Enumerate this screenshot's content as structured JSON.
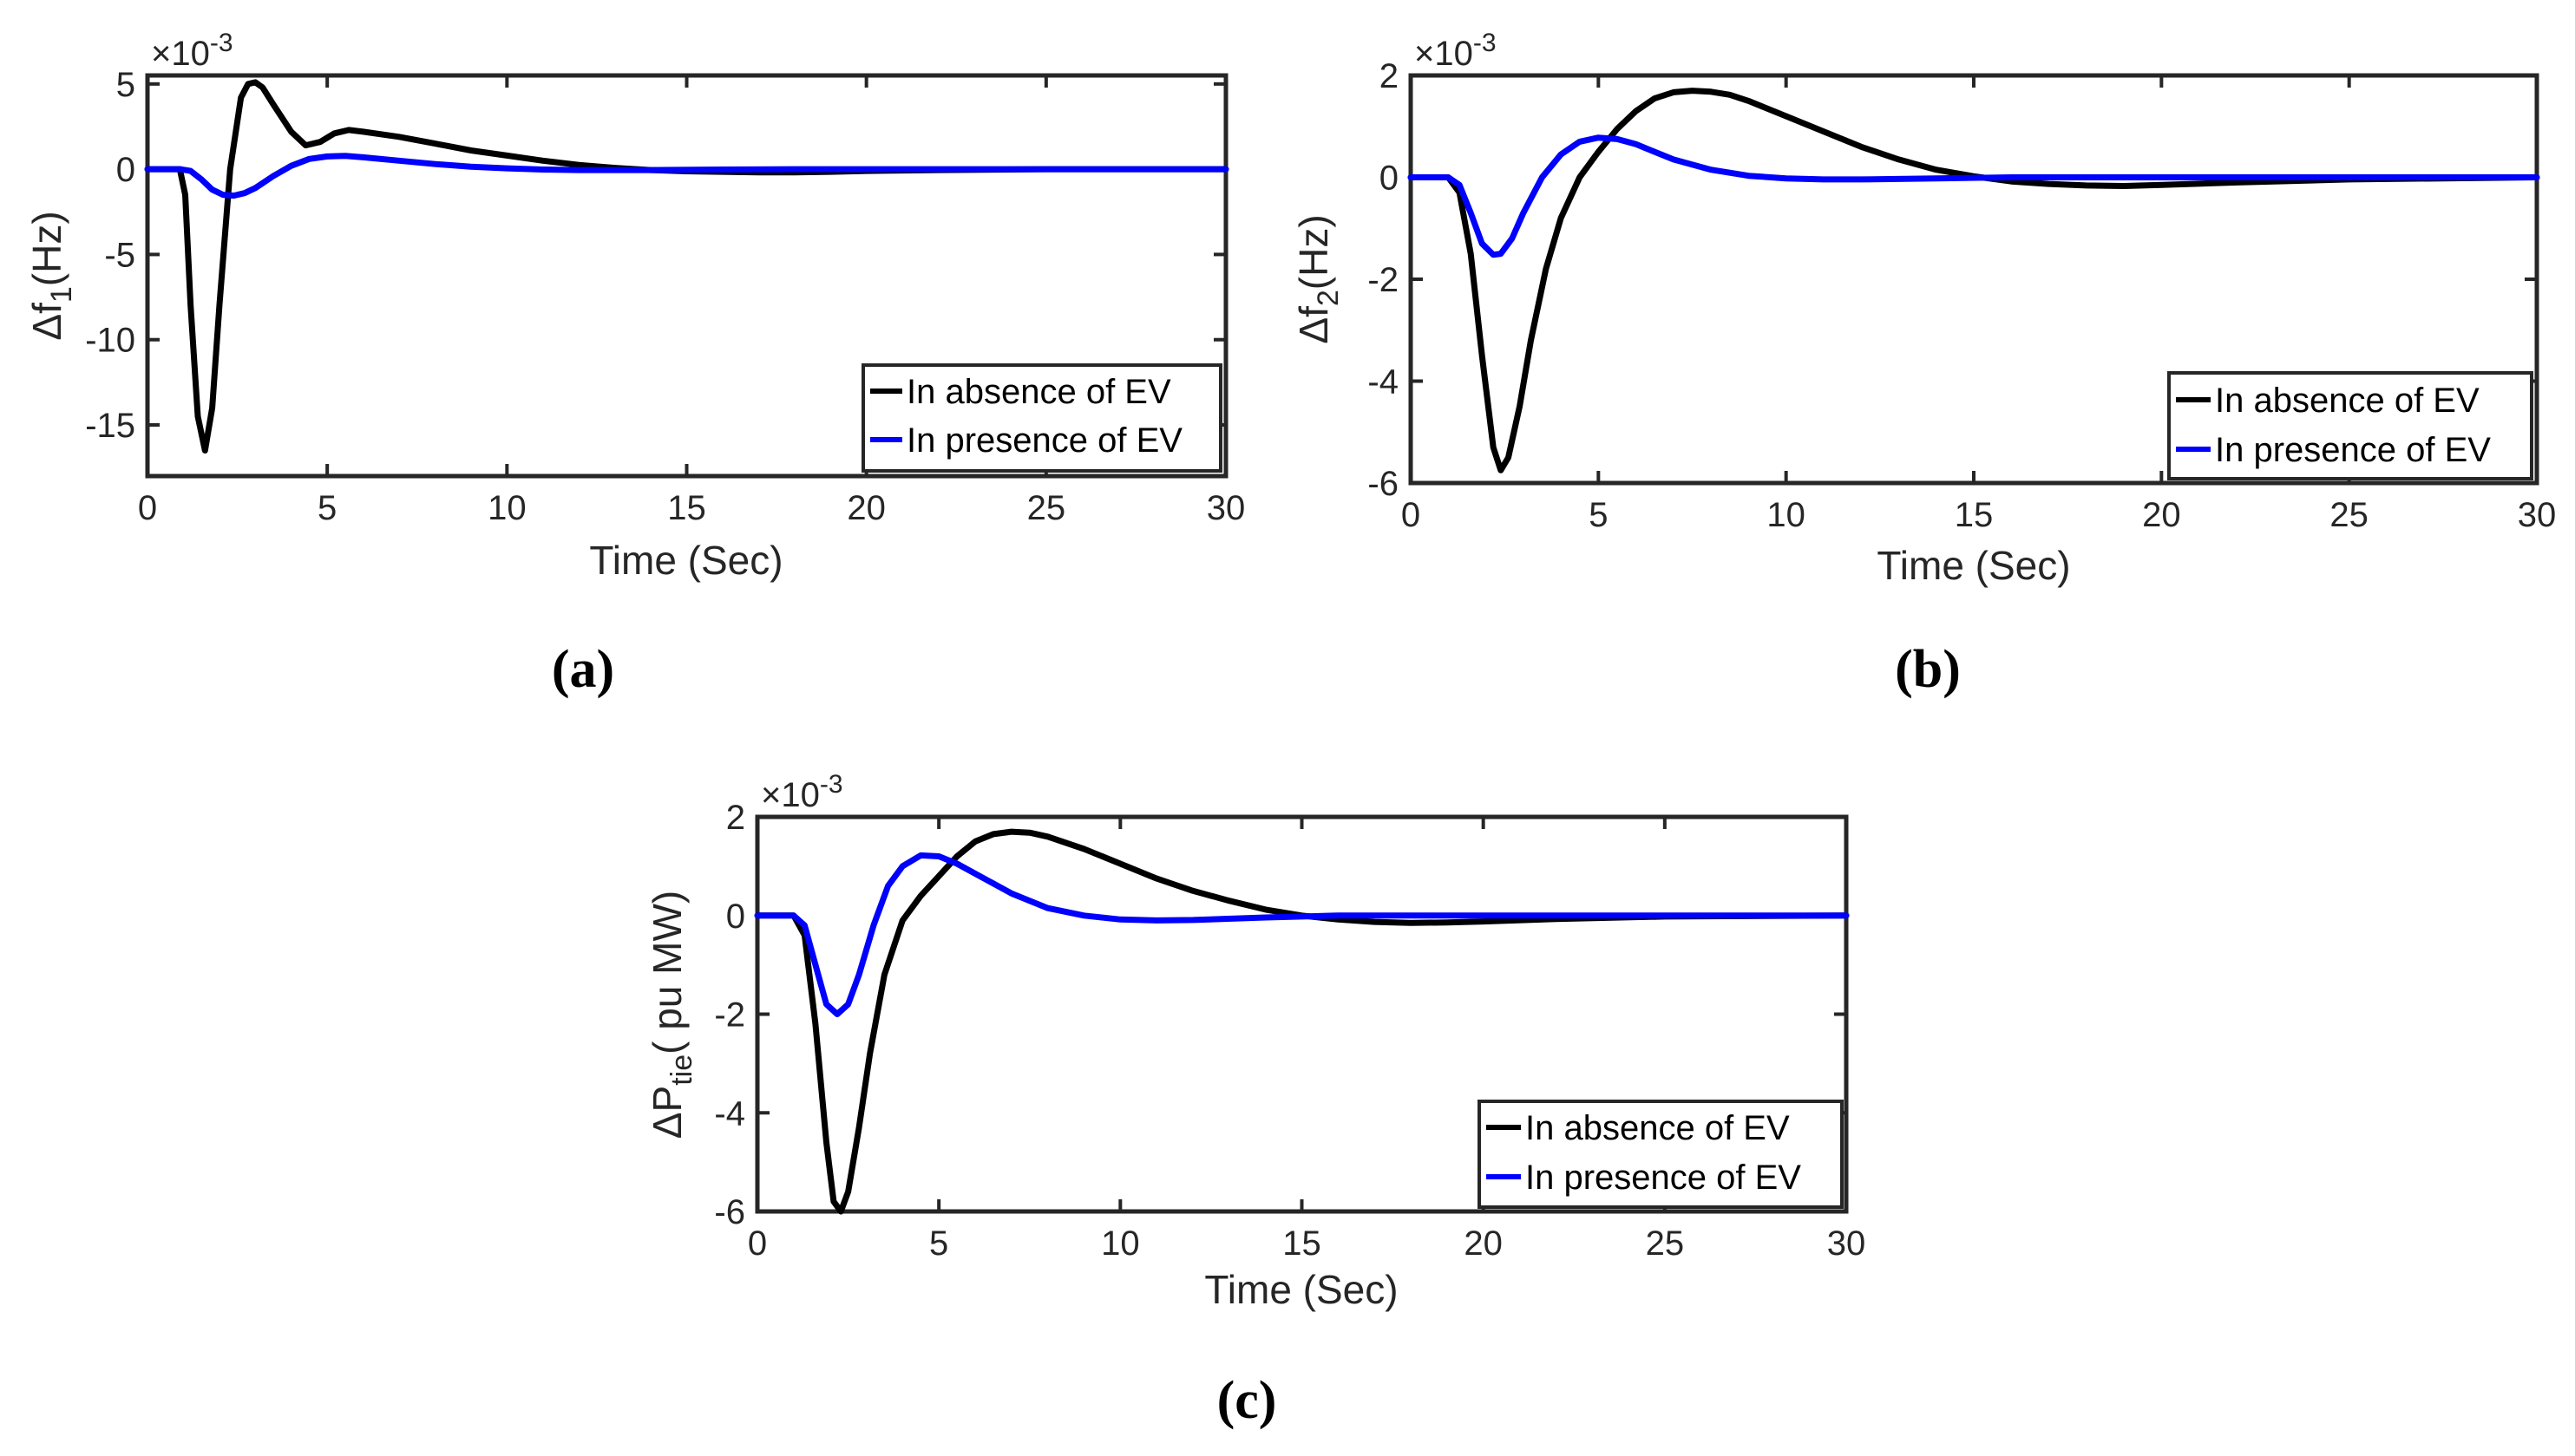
{
  "chart_data": [
    {
      "type": "line",
      "caption": "(a)",
      "ylabel": {
        "main": "Δf",
        "sub": "1",
        "rest": "(Hz)"
      },
      "xlabel": "Time (Sec)",
      "exponent": {
        "base": "×10",
        "power": "-3"
      },
      "xlim": [
        0,
        30
      ],
      "ylim": [
        -18,
        5.5
      ],
      "xticks": [
        0,
        5,
        10,
        15,
        20,
        25,
        30
      ],
      "yticks": [
        -15,
        -10,
        -5,
        0,
        5
      ],
      "legend_position": "bottom-right",
      "series": [
        {
          "name": "In absence of  EV",
          "color": "#000000",
          "x": [
            0,
            0.9,
            1.05,
            1.2,
            1.4,
            1.6,
            1.8,
            2.0,
            2.3,
            2.6,
            2.8,
            3.0,
            3.2,
            3.5,
            4.0,
            4.4,
            4.8,
            5.2,
            5.6,
            6.0,
            7.0,
            8.0,
            9.0,
            10.0,
            11.0,
            12.0,
            13.0,
            14.0,
            15.0,
            17.0,
            18.0,
            19.0,
            20.0,
            22.0,
            25.0,
            30.0
          ],
          "y": [
            0,
            0,
            -1.5,
            -8,
            -14.5,
            -16.5,
            -14,
            -8,
            0,
            4.2,
            5.0,
            5.1,
            4.8,
            3.8,
            2.2,
            1.4,
            1.6,
            2.1,
            2.3,
            2.2,
            1.9,
            1.5,
            1.1,
            0.8,
            0.5,
            0.25,
            0.08,
            -0.05,
            -0.12,
            -0.18,
            -0.18,
            -0.15,
            -0.1,
            -0.05,
            0,
            0
          ]
        },
        {
          "name": "In presence of EV",
          "color": "#0000FF",
          "x": [
            0,
            0.9,
            1.2,
            1.5,
            1.8,
            2.1,
            2.4,
            2.7,
            3.0,
            3.5,
            4.0,
            4.5,
            5.0,
            5.5,
            6.0,
            7.0,
            8.0,
            9.0,
            10.0,
            11.0,
            12.0,
            14.0,
            16.0,
            18.0,
            20.0,
            25.0,
            30.0
          ],
          "y": [
            0,
            0,
            -0.1,
            -0.6,
            -1.2,
            -1.5,
            -1.55,
            -1.4,
            -1.1,
            -0.4,
            0.2,
            0.6,
            0.75,
            0.78,
            0.7,
            0.5,
            0.3,
            0.15,
            0.05,
            -0.02,
            -0.05,
            -0.05,
            -0.02,
            0,
            0,
            0,
            0
          ]
        }
      ]
    },
    {
      "type": "line",
      "caption": "(b)",
      "ylabel": {
        "main": "Δf",
        "sub": "2",
        "rest": "(Hz)"
      },
      "xlabel": "Time (Sec)",
      "exponent": {
        "base": "×10",
        "power": "-3"
      },
      "xlim": [
        0,
        30
      ],
      "ylim": [
        -6,
        2
      ],
      "xticks": [
        0,
        5,
        10,
        15,
        20,
        25,
        30
      ],
      "yticks": [
        -6,
        -4,
        -2,
        0,
        2
      ],
      "legend_position": "bottom-right",
      "series": [
        {
          "name": "In absence of  EV",
          "color": "#000000",
          "x": [
            0,
            1.0,
            1.3,
            1.6,
            1.9,
            2.2,
            2.4,
            2.6,
            2.9,
            3.2,
            3.6,
            4.0,
            4.5,
            5.0,
            5.5,
            6.0,
            6.5,
            7.0,
            7.5,
            8.0,
            8.5,
            9.0,
            10.0,
            11.0,
            12.0,
            13.0,
            14.0,
            15.0,
            16.0,
            17.0,
            18.0,
            19.0,
            20.0,
            22.0,
            25.0,
            30.0
          ],
          "y": [
            0,
            0,
            -0.3,
            -1.5,
            -3.5,
            -5.3,
            -5.75,
            -5.5,
            -4.5,
            -3.2,
            -1.8,
            -0.8,
            0,
            0.5,
            0.95,
            1.3,
            1.55,
            1.67,
            1.7,
            1.68,
            1.62,
            1.5,
            1.2,
            0.9,
            0.6,
            0.35,
            0.15,
            0.02,
            -0.08,
            -0.13,
            -0.16,
            -0.17,
            -0.15,
            -0.1,
            -0.04,
            0
          ]
        },
        {
          "name": "In presence of EV",
          "color": "#0000FF",
          "x": [
            0,
            1.0,
            1.3,
            1.6,
            1.9,
            2.2,
            2.4,
            2.7,
            3.0,
            3.5,
            4.0,
            4.5,
            5.0,
            5.5,
            6.0,
            6.5,
            7.0,
            8.0,
            9.0,
            10.0,
            11.0,
            12.0,
            14.0,
            16.0,
            18.0,
            20.0,
            25.0,
            30.0
          ],
          "y": [
            0,
            0,
            -0.15,
            -0.7,
            -1.3,
            -1.52,
            -1.5,
            -1.2,
            -0.7,
            0,
            0.45,
            0.7,
            0.78,
            0.75,
            0.65,
            0.5,
            0.35,
            0.15,
            0.03,
            -0.02,
            -0.04,
            -0.04,
            -0.02,
            0,
            0,
            0,
            0,
            0
          ]
        }
      ]
    },
    {
      "type": "line",
      "caption": "(c)",
      "ylabel": {
        "main": "ΔP",
        "sub": "tie",
        "rest": "( pu MW)"
      },
      "xlabel": "Time (Sec)",
      "exponent": {
        "base": "×10",
        "power": "-3"
      },
      "xlim": [
        0,
        30
      ],
      "ylim": [
        -6,
        2
      ],
      "xticks": [
        0,
        5,
        10,
        15,
        20,
        25,
        30
      ],
      "yticks": [
        -6,
        -4,
        -2,
        0,
        2
      ],
      "legend_position": "bottom-right",
      "series": [
        {
          "name": "In absence of  EV",
          "color": "#000000",
          "x": [
            0,
            1.0,
            1.3,
            1.6,
            1.9,
            2.1,
            2.3,
            2.5,
            2.8,
            3.1,
            3.5,
            4.0,
            4.5,
            5.0,
            5.5,
            6.0,
            6.5,
            7.0,
            7.5,
            8.0,
            9.0,
            10.0,
            11.0,
            12.0,
            13.0,
            14.0,
            15.0,
            16.0,
            17.0,
            18.0,
            19.0,
            20.0,
            22.0,
            25.0,
            30.0
          ],
          "y": [
            0,
            0,
            -0.4,
            -2.2,
            -4.6,
            -5.8,
            -6.0,
            -5.6,
            -4.3,
            -2.8,
            -1.2,
            -0.1,
            0.4,
            0.8,
            1.2,
            1.5,
            1.65,
            1.7,
            1.68,
            1.6,
            1.35,
            1.05,
            0.75,
            0.5,
            0.3,
            0.12,
            0,
            -0.08,
            -0.13,
            -0.15,
            -0.14,
            -0.12,
            -0.07,
            -0.02,
            0
          ]
        },
        {
          "name": "In presence of EV",
          "color": "#0000FF",
          "x": [
            0,
            1.0,
            1.3,
            1.6,
            1.9,
            2.2,
            2.5,
            2.8,
            3.2,
            3.6,
            4.0,
            4.5,
            5.0,
            5.5,
            6.0,
            7.0,
            8.0,
            9.0,
            10.0,
            11.0,
            12.0,
            14.0,
            16.0,
            18.0,
            20.0,
            25.0,
            30.0
          ],
          "y": [
            0,
            0,
            -0.2,
            -1.0,
            -1.8,
            -2.0,
            -1.8,
            -1.2,
            -0.2,
            0.6,
            1.0,
            1.22,
            1.2,
            1.05,
            0.85,
            0.45,
            0.15,
            0,
            -0.08,
            -0.1,
            -0.09,
            -0.04,
            0,
            0,
            0,
            0,
            0
          ]
        }
      ]
    }
  ]
}
